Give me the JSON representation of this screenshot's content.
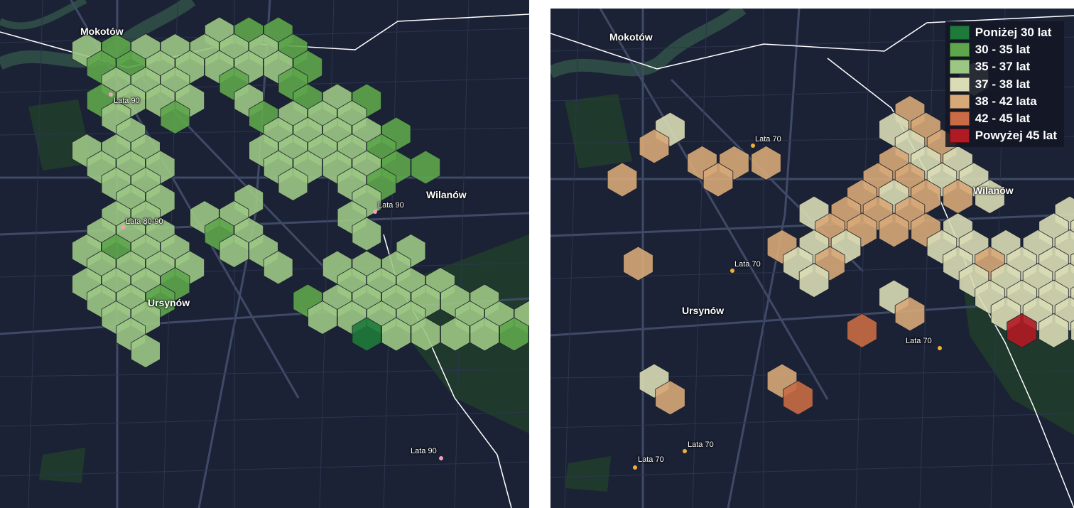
{
  "legend": {
    "items": [
      {
        "label": "Poniżej 30 lat",
        "color": "#1e7a3a"
      },
      {
        "label": "30 - 35 lat",
        "color": "#5ea64b"
      },
      {
        "label": "35 - 37 lat",
        "color": "#9cc684"
      },
      {
        "label": "37 - 38 lat",
        "color": "#d9dcb5"
      },
      {
        "label": "38 - 42 lata",
        "color": "#d7a978"
      },
      {
        "label": "42 - 45 lat",
        "color": "#c96b44"
      },
      {
        "label": "Powyżej 45 lat",
        "color": "#b01a22"
      }
    ]
  },
  "map_colors": {
    "background": "#1b2236",
    "roads": "#3a4560",
    "minor_roads": "#2a3349",
    "park": "#1f3a2c",
    "river": "#2e4a44",
    "boundary": "#ffffff"
  },
  "left_map": {
    "districts": {
      "mokotow": "Mokotów",
      "ursynow": "Ursynów",
      "wilanow": "Wilanów"
    },
    "annotations": [
      "Lata 90",
      "Lata 80-90",
      "Lata 90",
      "Lata 90"
    ],
    "annotation_dot_color": "#f2a0b6"
  },
  "right_map": {
    "districts": {
      "mokotow": "Mokotów",
      "ursynow": "Ursynów",
      "wilanow": "Wilanów"
    },
    "annotations": [
      "Lata 70",
      "Lata 70",
      "Lata 70",
      "Lata 70",
      "Lata 70"
    ],
    "annotation_dot_color": "#f0b232"
  }
}
